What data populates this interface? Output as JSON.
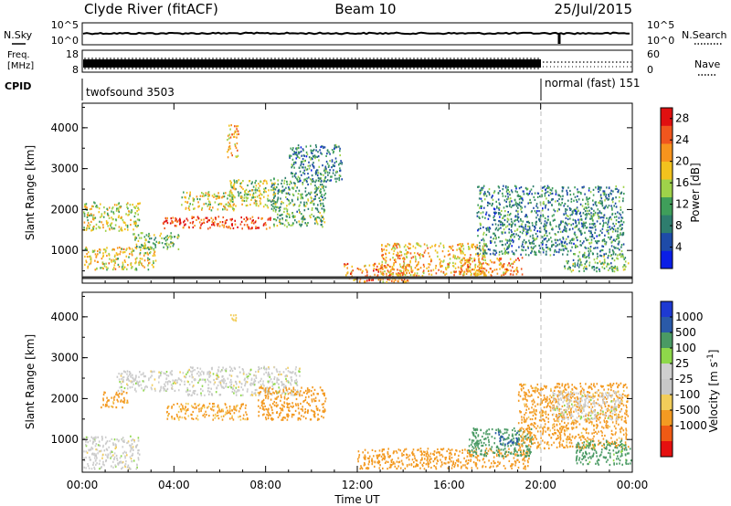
{
  "header": {
    "station": "Clyde River (fitACF)",
    "beam": "Beam 10",
    "date": "25/Jul/2015"
  },
  "noise_panel": {
    "left_label": "N.Sky",
    "right_label": "N.Search",
    "y_ticks": [
      "10^5",
      "10^0"
    ]
  },
  "freq_panel": {
    "left_label_1": "Freq.",
    "left_label_2": "[MHz]",
    "left_ticks": [
      "18",
      "8"
    ],
    "right_label": "Nave",
    "right_ticks": [
      "60",
      "0"
    ]
  },
  "cpid_panel": {
    "label": "CPID",
    "programs": [
      {
        "name": "twofsound 3503",
        "start": "00:00"
      },
      {
        "name": "normal (fast) 151",
        "start": "20:00"
      }
    ]
  },
  "colors": {
    "power": [
      "#0a1ee6",
      "#1e4ba8",
      "#2e7d6e",
      "#3f9e5a",
      "#9fd24a",
      "#f2c21e",
      "#f7941d",
      "#f0561e",
      "#e01010"
    ],
    "velocity": [
      "#e51010",
      "#ef5a14",
      "#f39a22",
      "#f2cd5a",
      "#c8c8c8",
      "#cfcfcf",
      "#8ed84a",
      "#4a9a64",
      "#2a5aa8",
      "#1e3ad2"
    ]
  },
  "chart_data": [
    {
      "type": "heatmap",
      "title": "",
      "xlabel": "Time UT",
      "ylabel": "Slant Range [km]",
      "x_ticks": [
        "00:00",
        "04:00",
        "08:00",
        "12:00",
        "16:00",
        "20:00",
        "00:00"
      ],
      "y_ticks": [
        "1000",
        "2000",
        "3000",
        "4000"
      ],
      "xlim": [
        0,
        24
      ],
      "ylim": [
        200,
        4600
      ],
      "colorbar": {
        "label": "Power [dB]",
        "ticks": [
          "4",
          "8",
          "12",
          "16",
          "20",
          "24",
          "28"
        ],
        "range": [
          0,
          30
        ]
      },
      "bands": [
        {
          "t0": 0.0,
          "t1": 3.2,
          "r0": 550,
          "r1": 1100,
          "value": 18
        },
        {
          "t0": 0.0,
          "t1": 2.5,
          "r0": 1500,
          "r1": 2200,
          "value": 16
        },
        {
          "t0": 2.2,
          "t1": 4.2,
          "r0": 1050,
          "r1": 1450,
          "value": 13
        },
        {
          "t0": 3.5,
          "t1": 8.2,
          "r0": 1550,
          "r1": 1850,
          "value": 26
        },
        {
          "t0": 4.3,
          "t1": 6.6,
          "r0": 2000,
          "r1": 2450,
          "value": 17
        },
        {
          "t0": 6.4,
          "t1": 8.4,
          "r0": 2050,
          "r1": 2750,
          "value": 15
        },
        {
          "t0": 8.2,
          "t1": 10.6,
          "r0": 1600,
          "r1": 2800,
          "value": 12
        },
        {
          "t0": 6.3,
          "t1": 6.8,
          "r0": 3300,
          "r1": 4100,
          "value": 20
        },
        {
          "t0": 9.0,
          "t1": 11.3,
          "r0": 2700,
          "r1": 3600,
          "value": 9
        },
        {
          "t0": 11.4,
          "t1": 14.2,
          "r0": 250,
          "r1": 700,
          "value": 22
        },
        {
          "t0": 13.0,
          "t1": 17.6,
          "r0": 400,
          "r1": 1200,
          "value": 20
        },
        {
          "t0": 16.4,
          "t1": 19.2,
          "r0": 400,
          "r1": 850,
          "value": 22
        },
        {
          "t0": 17.2,
          "t1": 23.6,
          "r0": 900,
          "r1": 2600,
          "value": 9
        },
        {
          "t0": 21.0,
          "t1": 23.8,
          "r0": 500,
          "r1": 900,
          "value": 12
        }
      ]
    },
    {
      "type": "heatmap",
      "title": "",
      "xlabel": "Time UT",
      "ylabel": "Slant Range [km]",
      "x_ticks": [
        "00:00",
        "04:00",
        "08:00",
        "12:00",
        "16:00",
        "20:00",
        "00:00"
      ],
      "y_ticks": [
        "1000",
        "2000",
        "3000",
        "4000"
      ],
      "xlim": [
        0,
        24
      ],
      "ylim": [
        200,
        4600
      ],
      "colorbar": {
        "label": "Velocity [m s^-1]",
        "ticks": [
          "1000",
          "500",
          "100",
          "25",
          "-25",
          "-100",
          "-500",
          "-1000"
        ],
        "range": [
          -1000,
          1000
        ]
      },
      "bands": [
        {
          "t0": 0.0,
          "t1": 2.5,
          "r0": 300,
          "r1": 1100,
          "value": 0
        },
        {
          "t0": 1.5,
          "t1": 4.5,
          "r0": 2200,
          "r1": 2700,
          "value": 0
        },
        {
          "t0": 4.5,
          "t1": 9.5,
          "r0": 2100,
          "r1": 2800,
          "value": 0
        },
        {
          "t0": 0.8,
          "t1": 2.0,
          "r0": 1800,
          "r1": 2200,
          "value": -150
        },
        {
          "t0": 3.6,
          "t1": 7.2,
          "r0": 1500,
          "r1": 1900,
          "value": -120
        },
        {
          "t0": 7.6,
          "t1": 10.6,
          "r0": 1500,
          "r1": 2300,
          "value": -200
        },
        {
          "t0": 6.4,
          "t1": 6.8,
          "r0": 3900,
          "r1": 4100,
          "value": -60
        },
        {
          "t0": 12.0,
          "t1": 19.5,
          "r0": 300,
          "r1": 800,
          "value": -200
        },
        {
          "t0": 16.8,
          "t1": 19.6,
          "r0": 600,
          "r1": 1300,
          "value": 200
        },
        {
          "t0": 18.0,
          "t1": 19.0,
          "r0": 900,
          "r1": 1200,
          "value": 700
        },
        {
          "t0": 19.0,
          "t1": 23.8,
          "r0": 800,
          "r1": 2400,
          "value": -150
        },
        {
          "t0": 21.5,
          "t1": 24.0,
          "r0": 400,
          "r1": 1000,
          "value": 150
        },
        {
          "t0": 20.5,
          "t1": 23.5,
          "r0": 1500,
          "r1": 2200,
          "value": 0
        }
      ]
    }
  ]
}
